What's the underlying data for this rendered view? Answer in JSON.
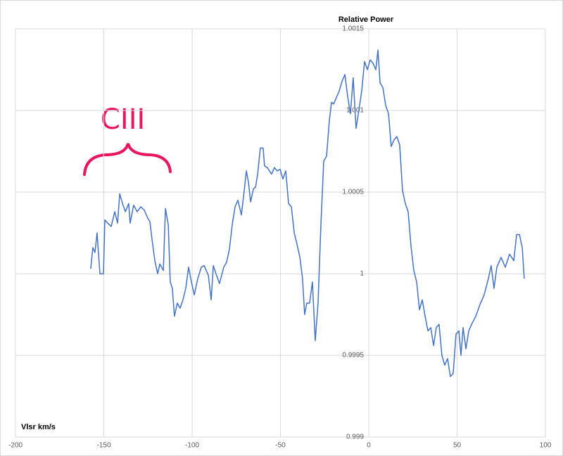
{
  "chart_data": {
    "type": "line",
    "title": "Relative Power",
    "x_label": "Vlsr km/s",
    "annotation": "CIII",
    "color": "#4472c4",
    "grid": true,
    "xlim": [
      -200,
      100
    ],
    "xticks": [
      -200,
      -150,
      -100,
      -50,
      0,
      50,
      100
    ],
    "ylim": [
      0.999,
      1.0015
    ],
    "yticks": [
      0.999,
      0.9995,
      1,
      1.0005,
      1.001,
      1.0015
    ],
    "x": [
      -157.4,
      -156.2,
      -155.0,
      -153.8,
      -152.2,
      -150.2,
      -149.4,
      -147.8,
      -145.8,
      -143.8,
      -142.2,
      -141.0,
      -139.4,
      -137.8,
      -135.9,
      -135.1,
      -133.1,
      -131.1,
      -129.1,
      -127.1,
      -125.1,
      -123.9,
      -122.7,
      -121.1,
      -119.5,
      -118.3,
      -116.3,
      -115.1,
      -113.5,
      -112.4,
      -111.2,
      -110.0,
      -108.4,
      -106.8,
      -105.2,
      -103.6,
      -102.0,
      -100.4,
      -98.8,
      -96.8,
      -94.8,
      -93.2,
      -90.8,
      -89.2,
      -88.0,
      -86.5,
      -84.5,
      -82.1,
      -80.5,
      -78.9,
      -77.3,
      -75.7,
      -74.1,
      -72.1,
      -70.5,
      -69.3,
      -68.1,
      -66.9,
      -65.3,
      -64.1,
      -62.9,
      -61.4,
      -59.8,
      -59.0,
      -57.4,
      -55.0,
      -53.4,
      -51.8,
      -50.2,
      -48.6,
      -47.0,
      -45.4,
      -43.8,
      -42.2,
      -40.6,
      -39.0,
      -37.5,
      -36.3,
      -35.1,
      -33.5,
      -31.9,
      -30.3,
      -28.7,
      -27.1,
      -25.5,
      -23.9,
      -22.3,
      -21.1,
      -19.9,
      -18.3,
      -16.7,
      -15.1,
      -13.5,
      -12.0,
      -10.4,
      -8.8,
      -7.2,
      -5.6,
      -4.0,
      -2.4,
      -0.8,
      0.8,
      2.4,
      4.0,
      5.2,
      6.4,
      8.0,
      9.6,
      11.2,
      12.7,
      14.3,
      15.9,
      17.5,
      19.1,
      20.7,
      22.3,
      23.9,
      25.5,
      27.1,
      28.7,
      30.3,
      31.9,
      33.5,
      35.1,
      36.7,
      38.2,
      39.8,
      41.4,
      43.0,
      44.6,
      46.2,
      47.8,
      49.4,
      51.0,
      52.2,
      53.4,
      55.0,
      56.6,
      58.2,
      60.6,
      62.9,
      65.3,
      67.7,
      69.3,
      70.9,
      72.5,
      74.9,
      77.3,
      79.7,
      82.1,
      83.7,
      85.3,
      86.9,
      88.0
    ],
    "values": [
      1.00003,
      1.00016,
      1.00013,
      1.00025,
      1.0,
      1.0,
      1.00033,
      1.00031,
      1.00029,
      1.00038,
      1.00031,
      1.00049,
      1.00043,
      1.00038,
      1.00043,
      1.00031,
      1.00042,
      1.00038,
      1.00041,
      1.00039,
      1.00034,
      1.00032,
      1.00021,
      1.00008,
      1.0,
      1.00006,
      1.00002,
      1.0004,
      1.0003,
      0.99995,
      0.99991,
      0.99974,
      0.99982,
      0.99979,
      0.99984,
      0.99991,
      1.00004,
      0.99995,
      0.99987,
      0.99997,
      1.00004,
      1.00005,
      0.99999,
      0.99984,
      1.00005,
      1.0,
      0.99994,
      1.00004,
      1.00007,
      1.00015,
      1.0003,
      1.00041,
      1.00045,
      1.00036,
      1.00051,
      1.00063,
      1.00056,
      1.00044,
      1.00052,
      1.00053,
      1.00061,
      1.00077,
      1.00077,
      1.00066,
      1.00065,
      1.00061,
      1.00065,
      1.00063,
      1.00064,
      1.00058,
      1.00063,
      1.00043,
      1.00041,
      1.00025,
      1.00018,
      1.0001,
      0.99997,
      0.99975,
      0.99982,
      0.99982,
      0.99995,
      0.99959,
      0.99982,
      1.0003,
      1.00069,
      1.00072,
      1.00094,
      1.00105,
      1.00104,
      1.00108,
      1.00112,
      1.00118,
      1.00122,
      1.00109,
      1.00098,
      1.0012,
      1.00089,
      1.001,
      1.00112,
      1.0013,
      1.00125,
      1.00131,
      1.00129,
      1.00125,
      1.00137,
      1.00117,
      1.00114,
      1.00103,
      1.00098,
      1.00078,
      1.00082,
      1.00084,
      1.00079,
      1.00051,
      1.00043,
      1.00038,
      1.00017,
      1.00002,
      0.99995,
      0.99978,
      0.99984,
      0.99974,
      0.99965,
      0.99967,
      0.99956,
      0.99967,
      0.99969,
      0.9995,
      0.99944,
      0.99948,
      0.99937,
      0.99939,
      0.99963,
      0.99965,
      0.9995,
      0.99967,
      0.99954,
      0.99965,
      0.99969,
      0.99974,
      0.99981,
      0.99987,
      0.99997,
      1.00005,
      0.99991,
      1.00004,
      1.0001,
      1.00004,
      1.00012,
      1.00008,
      1.00024,
      1.00024,
      1.00016,
      0.99997
    ]
  }
}
